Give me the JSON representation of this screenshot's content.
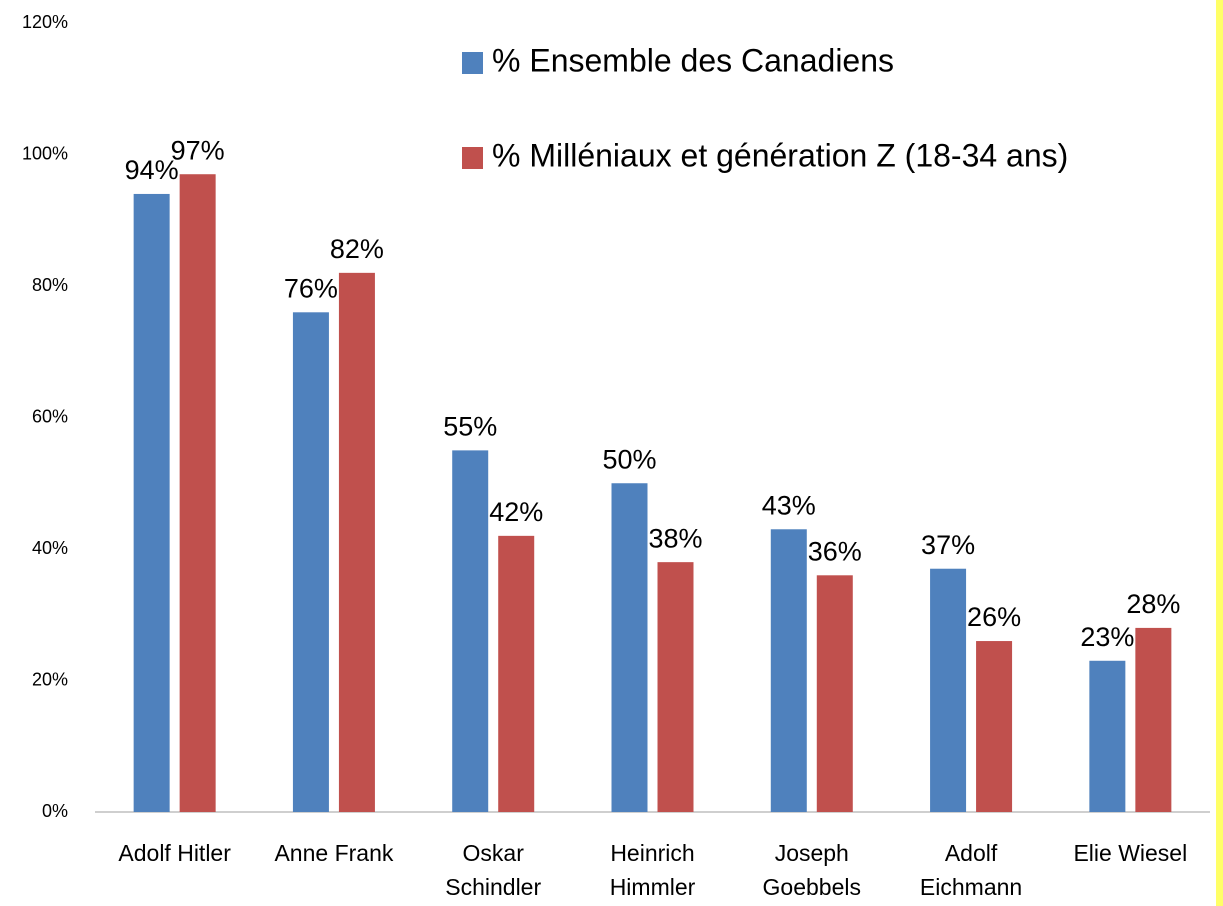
{
  "chart_data": {
    "type": "bar",
    "categories": [
      "Adolf Hitler",
      "Anne Frank",
      "Oskar Schindler",
      "Heinrich Himmler",
      "Joseph Goebbels",
      "Adolf Eichmann",
      "Elie Wiesel"
    ],
    "series": [
      {
        "name": "% Ensemble des Canadiens",
        "color": "#4f81bd",
        "values": [
          94,
          76,
          55,
          50,
          43,
          37,
          23
        ],
        "value_labels": [
          "94%",
          "76%",
          "55%",
          "50%",
          "43%",
          "37%",
          "23%"
        ]
      },
      {
        "name": "% Milléniaux et génération Z (18-34 ans)",
        "color": "#c0504d",
        "values": [
          97,
          82,
          42,
          38,
          36,
          26,
          28
        ],
        "value_labels": [
          "97%",
          "82%",
          "42%",
          "38%",
          "36%",
          "26%",
          "28%"
        ]
      }
    ],
    "ylim": [
      0,
      120
    ],
    "yticks": [
      {
        "value": 0,
        "label": "0%"
      },
      {
        "value": 20,
        "label": "20%"
      },
      {
        "value": 40,
        "label": "40%"
      },
      {
        "value": 60,
        "label": "60%"
      },
      {
        "value": 80,
        "label": "80%"
      },
      {
        "value": 100,
        "label": "100%"
      },
      {
        "value": 120,
        "label": "120%"
      }
    ],
    "grid": false,
    "legend": "top-right"
  }
}
